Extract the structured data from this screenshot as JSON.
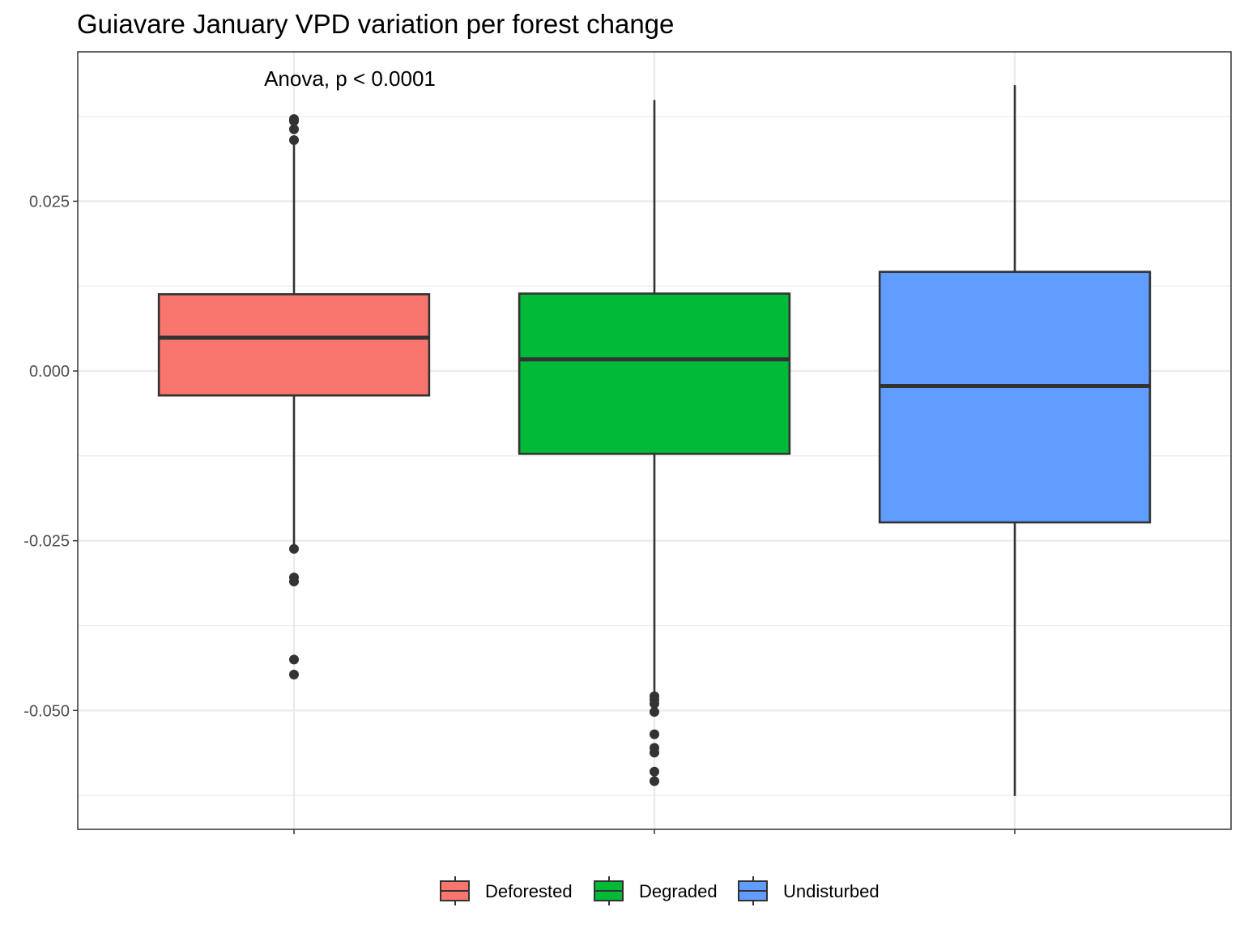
{
  "chart_data": {
    "type": "box",
    "title": "Guiavare January VPD variation per forest change",
    "xlabel": "",
    "ylabel": "",
    "ylim": [
      -0.0675,
      0.047
    ],
    "yticks": [
      0.025,
      0.0,
      -0.025,
      -0.05
    ],
    "ytick_labels": [
      "0.025",
      "0.000",
      "-0.025",
      "-0.050"
    ],
    "grid": true,
    "legend_position": "bottom",
    "annotation": "Anova, p < 0.0001",
    "categories": [
      "Deforested",
      "Degraded",
      "Undisturbed"
    ],
    "series": [
      {
        "name": "Deforested",
        "color": "#F8766D",
        "q1": -0.0036,
        "median": 0.0049,
        "q3": 0.0113,
        "whisker_low": -0.0262,
        "whisker_high": 0.0334,
        "outliers": [
          0.0371,
          0.0368,
          0.0356,
          0.034,
          -0.0262,
          -0.0304,
          -0.031,
          -0.0425,
          -0.0447
        ]
      },
      {
        "name": "Degraded",
        "color": "#00BA38",
        "q1": -0.0122,
        "median": 0.0017,
        "q3": 0.0114,
        "whisker_low": -0.0479,
        "whisker_high": 0.0399,
        "outliers": [
          -0.0479,
          -0.0484,
          -0.049,
          -0.0502,
          -0.0535,
          -0.0555,
          -0.0562,
          -0.059,
          -0.0604
        ]
      },
      {
        "name": "Undisturbed",
        "color": "#619CFF",
        "q1": -0.0223,
        "median": -0.0022,
        "q3": 0.0146,
        "whisker_low": -0.0626,
        "whisker_high": 0.0421,
        "outliers": []
      }
    ]
  }
}
